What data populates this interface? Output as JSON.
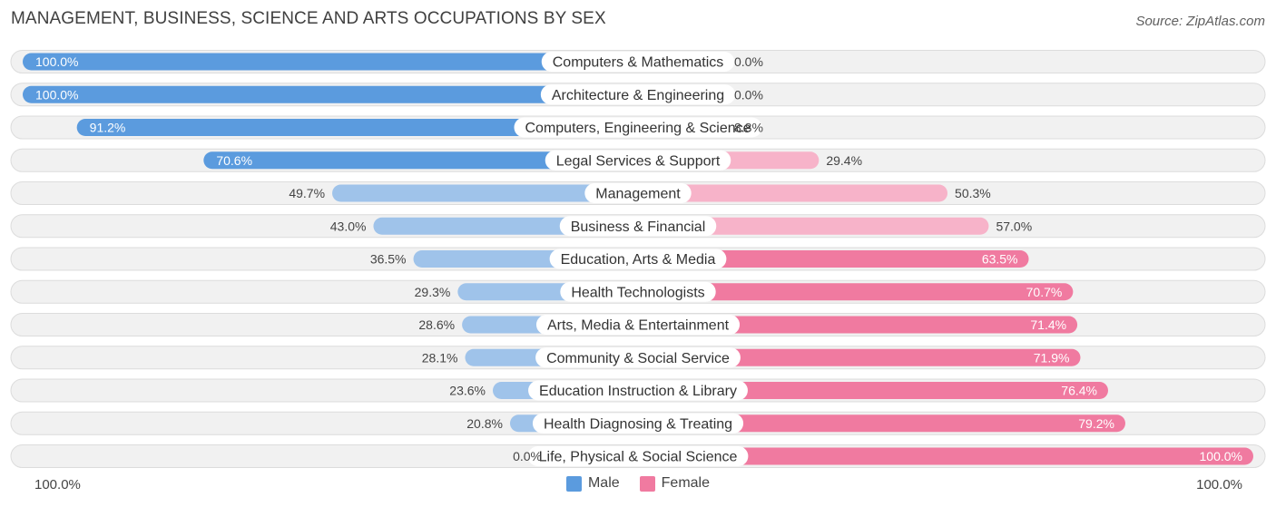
{
  "title": "MANAGEMENT, BUSINESS, SCIENCE AND ARTS OCCUPATIONS BY SEX",
  "source": "Source: ZipAtlas.com",
  "axis": {
    "left_label": "100.0%",
    "right_label": "100.0%"
  },
  "legend": {
    "male_label": "Male",
    "female_label": "Female"
  },
  "colors": {
    "male_strong": "#5b9bde",
    "male_light": "#9fc3ea",
    "female_strong": "#f07aa0",
    "female_light": "#f7b3c9",
    "row_bg": "#f1f1f1",
    "row_border": "#dcdcdc"
  },
  "chart_data": {
    "type": "bar",
    "orientation": "horizontal-diverging",
    "title": "MANAGEMENT, BUSINESS, SCIENCE AND ARTS OCCUPATIONS BY SEX",
    "xlim": [
      0,
      100
    ],
    "categories": [
      "Computers & Mathematics",
      "Architecture & Engineering",
      "Computers, Engineering & Science",
      "Legal Services & Support",
      "Management",
      "Business & Financial",
      "Education, Arts & Media",
      "Health Technologists",
      "Arts, Media & Entertainment",
      "Community & Social Service",
      "Education Instruction & Library",
      "Health Diagnosing & Treating",
      "Life, Physical & Social Science"
    ],
    "series": [
      {
        "name": "Male",
        "values": [
          100.0,
          100.0,
          91.2,
          70.6,
          49.7,
          43.0,
          36.5,
          29.3,
          28.6,
          28.1,
          23.6,
          20.8,
          0.0
        ],
        "labels": [
          "100.0%",
          "100.0%",
          "91.2%",
          "70.6%",
          "49.7%",
          "43.0%",
          "36.5%",
          "29.3%",
          "28.6%",
          "28.1%",
          "23.6%",
          "20.8%",
          "0.0%"
        ]
      },
      {
        "name": "Female",
        "values": [
          0.0,
          0.0,
          8.8,
          29.4,
          50.3,
          57.0,
          63.5,
          70.7,
          71.4,
          71.9,
          76.4,
          79.2,
          100.0
        ],
        "labels": [
          "0.0%",
          "0.0%",
          "8.8%",
          "29.4%",
          "50.3%",
          "57.0%",
          "63.5%",
          "70.7%",
          "71.4%",
          "71.9%",
          "76.4%",
          "79.2%",
          "100.0%"
        ]
      }
    ]
  }
}
